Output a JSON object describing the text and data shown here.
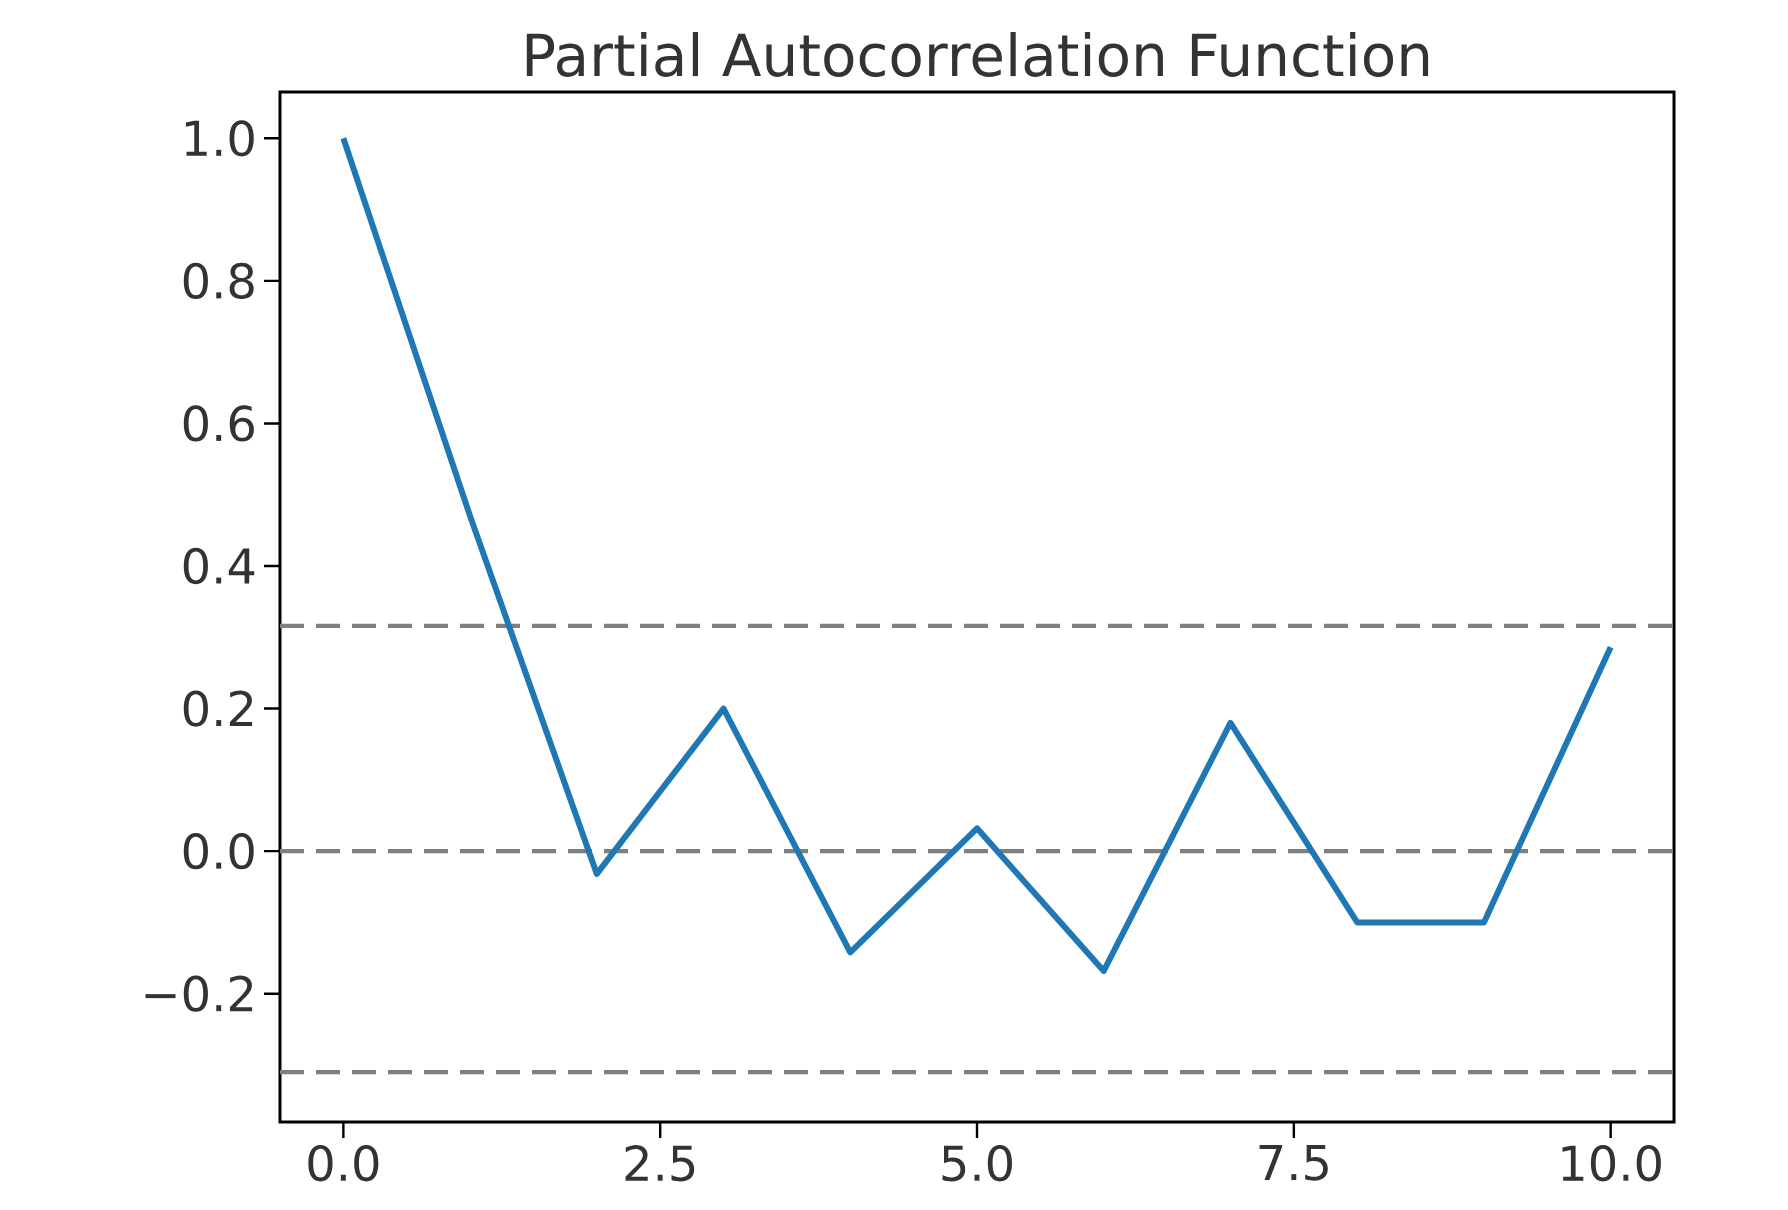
{
  "chart_data": {
    "type": "line",
    "title": "Partial Autocorrelation Function",
    "x": [
      0,
      1,
      2,
      3,
      4,
      5,
      6,
      7,
      8,
      9,
      10
    ],
    "series": [
      {
        "color": "#1f77b4",
        "values": [
          1.0,
          0.47,
          -0.032,
          0.2,
          -0.142,
          0.032,
          -0.168,
          0.18,
          -0.1,
          -0.1,
          0.286
        ]
      }
    ],
    "xlim": [
      -0.5,
      10.5
    ],
    "ylim": [
      -0.38,
      1.065
    ],
    "xticks": [
      {
        "value": 0,
        "label": "0.0"
      },
      {
        "value": 2.5,
        "label": "2.5"
      },
      {
        "value": 5,
        "label": "5.0"
      },
      {
        "value": 7.5,
        "label": "7.5"
      },
      {
        "value": 10,
        "label": "10.0"
      }
    ],
    "yticks": [
      {
        "value": -0.2,
        "label": "−0.2"
      },
      {
        "value": 0,
        "label": "0.0"
      },
      {
        "value": 0.2,
        "label": "0.2"
      },
      {
        "value": 0.4,
        "label": "0.4"
      },
      {
        "value": 0.6,
        "label": "0.6"
      },
      {
        "value": 0.8,
        "label": "0.8"
      },
      {
        "value": 1.0,
        "label": "1.0"
      }
    ],
    "ref_lines": [
      {
        "axis": "y",
        "value": 0.316,
        "color": "#808080",
        "line_style": "dashed"
      },
      {
        "axis": "y",
        "value": 0,
        "color": "#808080",
        "line_style": "dashed"
      },
      {
        "axis": "y",
        "value": -0.31,
        "color": "#808080",
        "line_style": "dashed"
      }
    ],
    "grid": false,
    "marker": "none",
    "line_style": "solid"
  }
}
